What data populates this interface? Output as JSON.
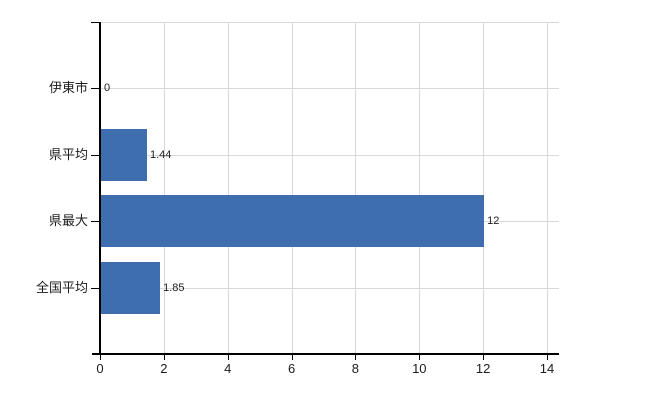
{
  "chart_data": {
    "type": "bar",
    "orientation": "horizontal",
    "title": "",
    "xlabel": "",
    "ylabel": "",
    "categories": [
      "伊東市",
      "県平均",
      "県最大",
      "全国平均"
    ],
    "values": [
      0,
      1.44,
      12,
      1.85
    ],
    "value_labels": [
      "0",
      "1.44",
      "12",
      "1.85"
    ],
    "x_ticks": [
      0,
      2,
      4,
      6,
      8,
      10,
      12,
      14
    ],
    "x_tick_labels": [
      "0",
      "2",
      "4",
      "6",
      "8",
      "10",
      "12",
      "14"
    ],
    "xlim": [
      0,
      14.4
    ],
    "grid": true,
    "legend": "none",
    "colors": {
      "bar": "#3f6eae",
      "gridline": "#d9d9d9",
      "axis": "#000000",
      "text": "#1c1c1c",
      "background": "#ffffff"
    }
  }
}
